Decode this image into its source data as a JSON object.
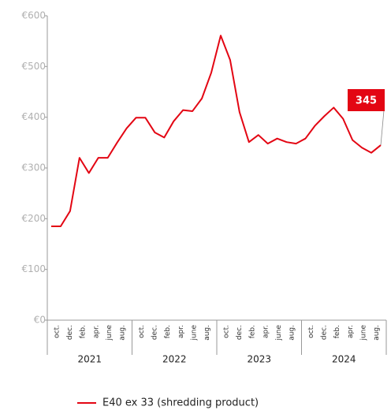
{
  "chart_data": {
    "type": "line",
    "ylim": [
      0,
      600
    ],
    "yticks": [
      {
        "value": 0,
        "label": "€0"
      },
      {
        "value": 100,
        "label": "€100"
      },
      {
        "value": 200,
        "label": "€200"
      },
      {
        "value": 300,
        "label": "€300"
      },
      {
        "value": 400,
        "label": "€400"
      },
      {
        "value": 500,
        "label": "€500"
      },
      {
        "value": 600,
        "label": "€600"
      }
    ],
    "groups": [
      {
        "name": "2021",
        "months": [
          "oct.",
          "dec.",
          "feb.",
          "apr.",
          "june",
          "aug."
        ]
      },
      {
        "name": "2022",
        "months": [
          "oct.",
          "dec.",
          "feb.",
          "apr.",
          "june",
          "aug."
        ]
      },
      {
        "name": "2023",
        "months": [
          "oct.",
          "dec.",
          "feb.",
          "apr.",
          "june",
          "aug."
        ]
      },
      {
        "name": "2024",
        "months": [
          "oct.",
          "dec.",
          "feb.",
          "apr.",
          "june",
          "aug."
        ]
      }
    ],
    "series": [
      {
        "name": "E40 ex 33 (shredding product)",
        "color": "#e30613",
        "values": [
          185,
          185,
          215,
          320,
          290,
          320,
          320,
          350,
          378,
          399,
          399,
          370,
          360,
          392,
          414,
          412,
          437,
          488,
          561,
          513,
          410,
          351,
          365,
          348,
          358,
          351,
          348,
          358,
          383,
          402,
          419,
          397,
          355,
          340,
          330,
          345
        ]
      }
    ]
  }
}
